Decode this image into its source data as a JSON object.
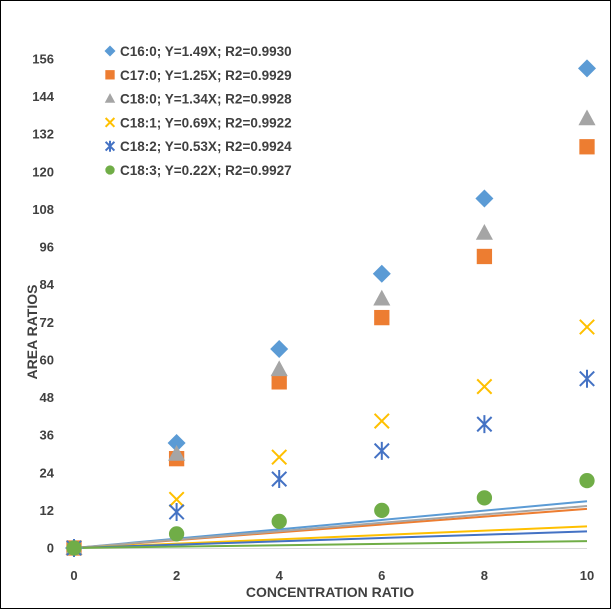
{
  "chart_data": {
    "type": "scatter",
    "xlabel": "CONCENTRATION RATIO",
    "ylabel": "AREA RATIOS",
    "xlim": [
      0,
      10
    ],
    "ylim": [
      0,
      156
    ],
    "x_ticks": [
      "0",
      "2",
      "4",
      "6",
      "8",
      "10"
    ],
    "y_ticks": [
      "0",
      "12",
      "24",
      "36",
      "48",
      "60",
      "72",
      "84",
      "96",
      "108",
      "120",
      "132",
      "144",
      "156"
    ],
    "grid": false,
    "legend_position": "top-left",
    "x": [
      0,
      2,
      4,
      6,
      8,
      10
    ],
    "series": [
      {
        "name": "C16:0; Y=1.49X; R2=0.9930",
        "marker": "diamond",
        "color": "#5B9BD5",
        "slope": 1.49,
        "values": [
          0,
          33.5,
          63.5,
          87.5,
          111.5,
          153
        ]
      },
      {
        "name": "C17:0; Y=1.25X; R2=0.9929",
        "marker": "square",
        "color": "#ED7D31",
        "slope": 1.25,
        "values": [
          0,
          28.5,
          53,
          73.5,
          93,
          128
        ]
      },
      {
        "name": "C18:0; Y=1.34X; R2=0.9928",
        "marker": "triangle",
        "color": "#A5A5A5",
        "slope": 1.34,
        "values": [
          0,
          30,
          57,
          79.5,
          100.5,
          137
        ]
      },
      {
        "name": "C18:1; Y=0.69X; R2=0.9922",
        "marker": "x",
        "color": "#FFC000",
        "slope": 0.69,
        "values": [
          0,
          15.5,
          29,
          40.5,
          51.5,
          70.5
        ]
      },
      {
        "name": "C18:2; Y=0.53X; R2=0.9924",
        "marker": "star",
        "color": "#4472C4",
        "slope": 0.53,
        "values": [
          0,
          11.5,
          22,
          31,
          39.5,
          54
        ]
      },
      {
        "name": "C18:3; Y=0.22X; R2=0.9927",
        "marker": "circle",
        "color": "#70AD47",
        "slope": 0.22,
        "values": [
          0,
          4.5,
          8.5,
          12,
          16,
          21.5
        ]
      }
    ]
  }
}
